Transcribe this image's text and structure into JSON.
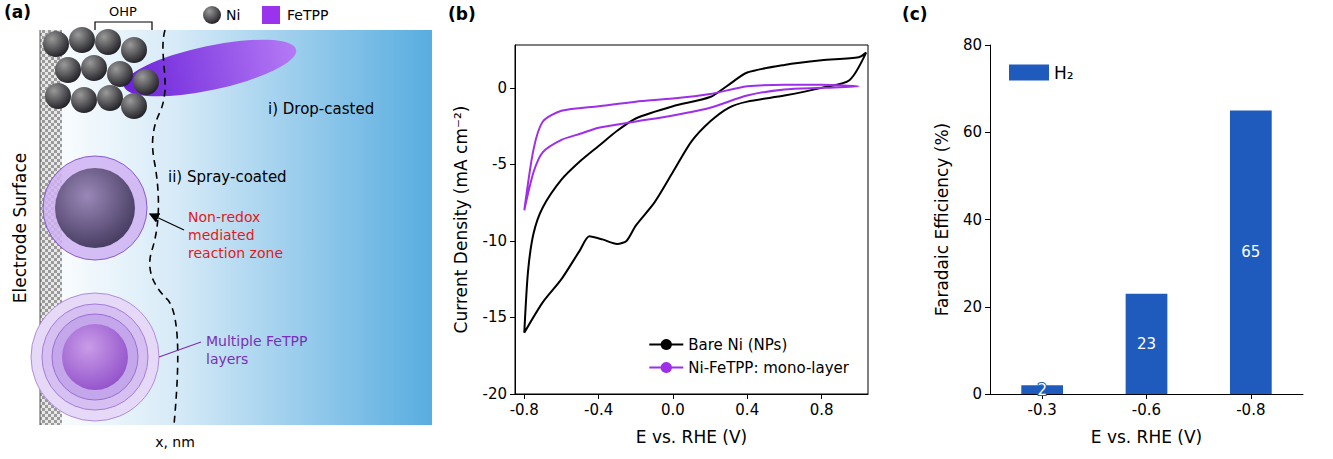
{
  "panels": [
    "(a)",
    "(b)",
    "(c)"
  ],
  "diagram": {
    "bracket": "OHP",
    "legend": [
      {
        "label": "Ni"
      },
      {
        "label": "FeTPP"
      }
    ],
    "electrode": "Electrode Surface",
    "x_axis": "x, nm",
    "annotations": {
      "drop": "i) Drop-casted",
      "spray": "ii) Spray-coated",
      "zone": [
        "Non-redox",
        "mediated",
        "reaction zone"
      ],
      "layers": [
        "Multiple FeTPP",
        "layers"
      ]
    }
  },
  "chart_data": [
    {
      "type": "line",
      "xlabel": "E vs. RHE (V)",
      "ylabel": "Current Density (mA cm⁻²)",
      "xlim": [
        -0.85,
        1.05
      ],
      "xticks": [
        -0.8,
        -0.4,
        {
          "value": 0,
          "label": "0.0"
        },
        0.4,
        0.8
      ],
      "ylim": [
        -20,
        2.8
      ],
      "yticks": [
        -20,
        -15,
        -10,
        -5,
        0
      ],
      "grid": false,
      "legend": "lower right",
      "series": [
        {
          "name": "Bare Ni (NPs)",
          "color": "#000000",
          "x": [
            -0.8,
            -0.7,
            -0.6,
            -0.5,
            -0.45,
            -0.38,
            -0.3,
            -0.25,
            -0.2,
            -0.1,
            0,
            0.1,
            0.2,
            0.3,
            0.4,
            0.6,
            0.8,
            0.95,
            1.04,
            1.0,
            0.8,
            0.6,
            0.4,
            0.3,
            0.2,
            0,
            -0.2,
            -0.3,
            -0.4,
            -0.5,
            -0.6,
            -0.7,
            -0.75,
            -0.78,
            -0.8
          ],
          "values": [
            -16,
            -14,
            -12.5,
            -10.6,
            -9.7,
            -9.9,
            -10.2,
            -10,
            -9,
            -7.5,
            -5.5,
            -3.5,
            -2.2,
            -1.3,
            -0.9,
            -0.5,
            0,
            0.5,
            2.3,
            2.0,
            1.8,
            1.5,
            1.0,
            0.2,
            -0.6,
            -1.2,
            -2.0,
            -2.8,
            -3.8,
            -4.8,
            -6,
            -7.8,
            -9.5,
            -12,
            -16
          ]
        },
        {
          "name": "Ni-FeTPP: mono-layer",
          "color": "#9e2ee8",
          "x": [
            -0.8,
            -0.75,
            -0.7,
            -0.6,
            -0.5,
            -0.4,
            -0.2,
            0,
            0.2,
            0.4,
            0.6,
            0.8,
            1.0,
            0.8,
            0.6,
            0.4,
            0.2,
            0,
            -0.2,
            -0.4,
            -0.6,
            -0.7,
            -0.75,
            -0.8
          ],
          "values": [
            -8,
            -5.5,
            -4.2,
            -3.4,
            -3.0,
            -2.6,
            -2.2,
            -1.8,
            -1.3,
            -0.5,
            -0.1,
            0,
            0.1,
            0.2,
            0.2,
            0.1,
            -0.4,
            -0.7,
            -0.9,
            -1.2,
            -1.5,
            -2.2,
            -4.0,
            -8
          ]
        }
      ]
    },
    {
      "type": "bar",
      "xlabel": "E vs. RHE (V)",
      "ylabel": "Faradaic Efficiency (%)",
      "categories": [
        "-0.3",
        "-0.6",
        "-0.8"
      ],
      "ylim": [
        0,
        80
      ],
      "yticks": [
        0,
        20,
        40,
        60,
        80
      ],
      "grid": false,
      "legend": "upper left",
      "data_labels": true,
      "series": [
        {
          "name": "H₂",
          "color": "#1f5bbd",
          "values": [
            2,
            23,
            65
          ]
        }
      ]
    }
  ]
}
